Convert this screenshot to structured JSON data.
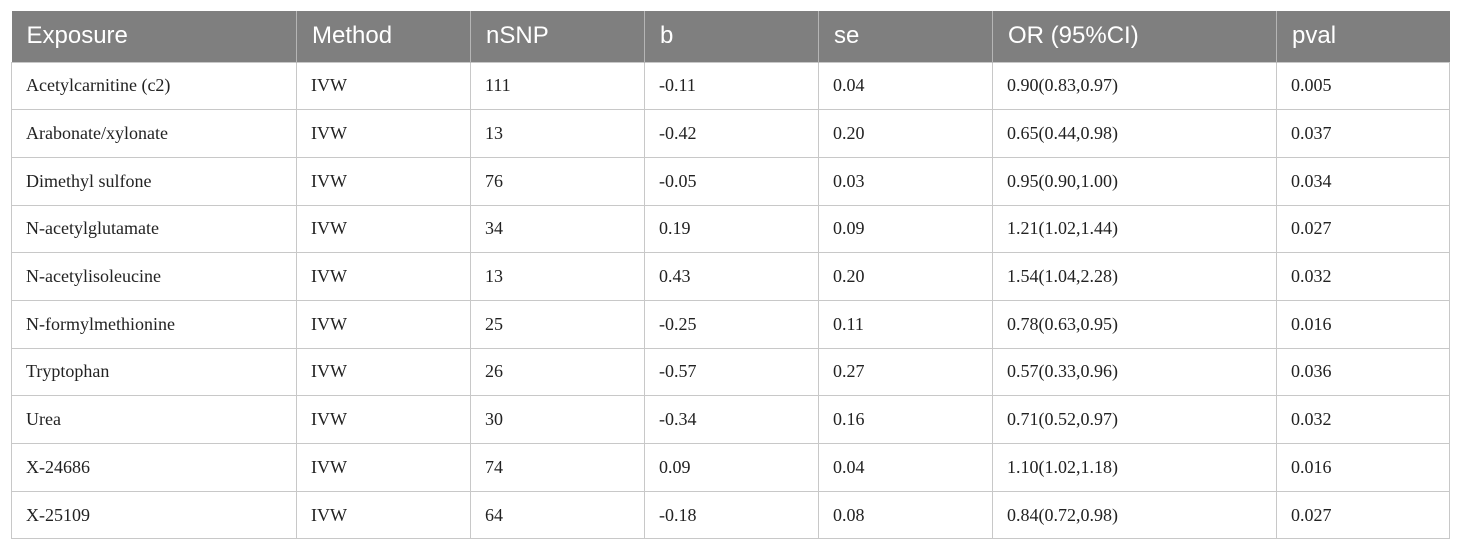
{
  "table": {
    "headers": [
      "Exposure",
      "Method",
      "nSNP",
      "b",
      "se",
      "OR (95%CI)",
      "pval"
    ],
    "rows": [
      [
        "Acetylcarnitine (c2)",
        "IVW",
        "111",
        "-0.11",
        "0.04",
        "0.90(0.83,0.97)",
        "0.005"
      ],
      [
        "Arabonate/xylonate",
        "IVW",
        "13",
        "-0.42",
        "0.20",
        "0.65(0.44,0.98)",
        "0.037"
      ],
      [
        "Dimethyl sulfone",
        "IVW",
        "76",
        "-0.05",
        "0.03",
        "0.95(0.90,1.00)",
        "0.034"
      ],
      [
        "N-acetylglutamate",
        "IVW",
        "34",
        "0.19",
        "0.09",
        "1.21(1.02,1.44)",
        "0.027"
      ],
      [
        "N-acetylisoleucine",
        "IVW",
        "13",
        "0.43",
        "0.20",
        "1.54(1.04,2.28)",
        "0.032"
      ],
      [
        "N-formylmethionine",
        "IVW",
        "25",
        "-0.25",
        "0.11",
        "0.78(0.63,0.95)",
        "0.016"
      ],
      [
        "Tryptophan",
        "IVW",
        "26",
        "-0.57",
        "0.27",
        "0.57(0.33,0.96)",
        "0.036"
      ],
      [
        "Urea",
        "IVW",
        "30",
        "-0.34",
        "0.16",
        "0.71(0.52,0.97)",
        "0.032"
      ],
      [
        "X-24686",
        "IVW",
        "74",
        "0.09",
        "0.04",
        "1.10(1.02,1.18)",
        "0.016"
      ],
      [
        "X-25109",
        "IVW",
        "64",
        "-0.18",
        "0.08",
        "0.84(0.72,0.98)",
        "0.027"
      ]
    ]
  }
}
